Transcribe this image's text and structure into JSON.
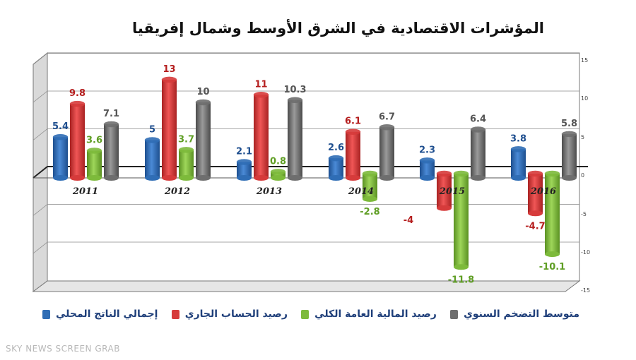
{
  "title": "المؤشرات الاقتصادية في الشرق الأوسط وشمال إفريقيا",
  "watermark": "SKY NEWS SCREEN GRAB",
  "chart_data": {
    "type": "bar",
    "categories": [
      "2011",
      "2012",
      "2013",
      "2014",
      "2015",
      "2016"
    ],
    "series": [
      {
        "name": "إجمالي الناتج المحلي",
        "color": "#2f6db5",
        "label_color": "#1f4f8f",
        "values": [
          5.4,
          5,
          2.1,
          2.6,
          2.3,
          3.8
        ]
      },
      {
        "name": "رصيد الحساب الجاري",
        "color": "#d63b3b",
        "label_color": "#b51e1e",
        "values": [
          9.8,
          13,
          11,
          6.1,
          -4,
          -4.7
        ]
      },
      {
        "name": "رصيد المالية العامة الكلي",
        "color": "#7dba3b",
        "label_color": "#5f9e24",
        "values": [
          3.6,
          3.7,
          0.8,
          -2.8,
          -11.8,
          -10.1
        ]
      },
      {
        "name": "متوسط التضخم السنوي",
        "color": "#6e6e6e",
        "label_color": "#555555",
        "values": [
          7.1,
          10,
          10.3,
          6.7,
          6.4,
          5.8
        ]
      }
    ],
    "y_ticks": [
      "15",
      "10",
      "5",
      "0",
      "-5",
      "-10",
      "-15"
    ],
    "ylim": [
      -15,
      15
    ],
    "grid": true,
    "legend": "bottom"
  }
}
